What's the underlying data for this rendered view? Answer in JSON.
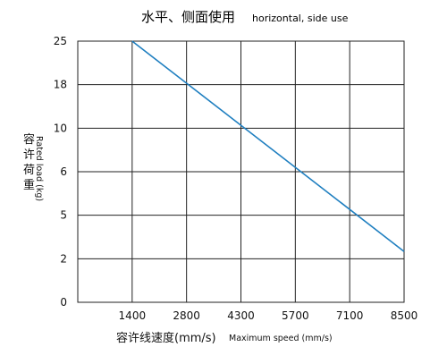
{
  "chart_data": {
    "type": "line",
    "title": "水平、侧面使用",
    "subtitle": "horizontal, side use",
    "xlabel": "容许线速度(mm/s)",
    "xlabel_en": "Maximum speed (mm/s)",
    "ylabel": "容许荷重",
    "ylabel_en": "Rated load (kg)",
    "x_ticks": [
      "1400",
      "2800",
      "4300",
      "5700",
      "7100",
      "8500"
    ],
    "y_ticks": [
      "25",
      "18",
      "10",
      "6",
      "5",
      "2",
      "0"
    ],
    "x_scale": "categorical-evenly-spaced",
    "y_scale": "categorical-evenly-spaced",
    "grid": true,
    "series": [
      {
        "color": "#1f7fc0",
        "points": [
          {
            "x": 1400,
            "y": 25
          },
          {
            "x": 8500,
            "y": 2.5
          }
        ]
      }
    ]
  }
}
